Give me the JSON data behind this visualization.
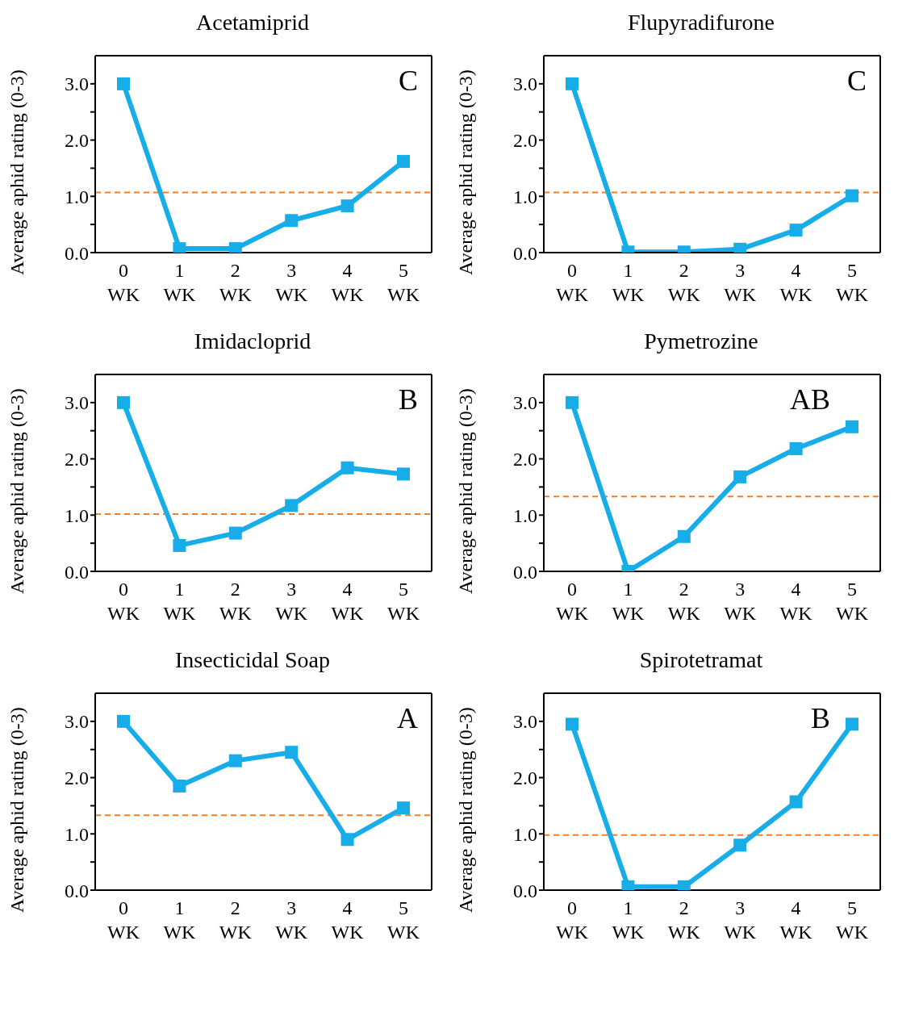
{
  "chart_data": [
    {
      "type": "line",
      "title": "Acetamiprid",
      "ylabel": "Average aphid rating (0-3)",
      "annotations": [
        "C"
      ],
      "categories": [
        "0 WK",
        "1 WK",
        "2 WK",
        "3 WK",
        "4 WK",
        "5 WK"
      ],
      "marker": "square",
      "line_style": "solid",
      "grid": false,
      "series": [
        {
          "color": "#16ade8",
          "values": [
            3.0,
            0.07,
            0.07,
            0.57,
            0.83,
            1.62
          ]
        }
      ],
      "ylim": [
        0,
        3.5
      ],
      "yticks": [
        {
          "value": 0,
          "label": "0.0"
        },
        {
          "value": 0.5,
          "label": null
        },
        {
          "value": 1,
          "label": "1.0"
        },
        {
          "value": 1.5,
          "label": null
        },
        {
          "value": 2,
          "label": "2.0"
        },
        {
          "value": 2.5,
          "label": null
        },
        {
          "value": 3,
          "label": "3.0"
        }
      ],
      "ref_lines": [
        {
          "axis": "y",
          "value": 1.07,
          "color": "#f07f2a",
          "line_style": "dashed"
        }
      ]
    },
    {
      "type": "line",
      "title": "Flupyradifurone",
      "ylabel": "Average aphid rating (0-3)",
      "annotations": [
        "C"
      ],
      "categories": [
        "0 WK",
        "1 WK",
        "2 WK",
        "3 WK",
        "4 WK",
        "5 WK"
      ],
      "marker": "square",
      "line_style": "solid",
      "grid": false,
      "series": [
        {
          "color": "#16ade8",
          "values": [
            3.0,
            0.01,
            0.01,
            0.06,
            0.4,
            1.01
          ]
        }
      ],
      "ylim": [
        0,
        3.5
      ],
      "yticks": [
        {
          "value": 0,
          "label": "0.0"
        },
        {
          "value": 0.5,
          "label": null
        },
        {
          "value": 1,
          "label": "1.0"
        },
        {
          "value": 1.5,
          "label": null
        },
        {
          "value": 2,
          "label": "2.0"
        },
        {
          "value": 2.5,
          "label": null
        },
        {
          "value": 3,
          "label": "3.0"
        }
      ],
      "ref_lines": [
        {
          "axis": "y",
          "value": 1.07,
          "color": "#f07f2a",
          "line_style": "dashed"
        }
      ]
    },
    {
      "type": "line",
      "title": "Imidacloprid",
      "ylabel": "Average aphid rating (0-3)",
      "annotations": [
        "B"
      ],
      "categories": [
        "0 WK",
        "1 WK",
        "2 WK",
        "3 WK",
        "4 WK",
        "5 WK"
      ],
      "marker": "square",
      "line_style": "solid",
      "grid": false,
      "series": [
        {
          "color": "#16ade8",
          "values": [
            3.0,
            0.46,
            0.68,
            1.17,
            1.84,
            1.73
          ]
        }
      ],
      "ylim": [
        0,
        3.5
      ],
      "yticks": [
        {
          "value": 0,
          "label": "0.0"
        },
        {
          "value": 0.5,
          "label": null
        },
        {
          "value": 1,
          "label": "1.0"
        },
        {
          "value": 1.5,
          "label": null
        },
        {
          "value": 2,
          "label": "2.0"
        },
        {
          "value": 2.5,
          "label": null
        },
        {
          "value": 3,
          "label": "3.0"
        }
      ],
      "ref_lines": [
        {
          "axis": "y",
          "value": 1.02,
          "color": "#f07f2a",
          "line_style": "dashed"
        }
      ]
    },
    {
      "type": "line",
      "title": "Pymetrozine",
      "ylabel": "Average aphid rating (0-3)",
      "annotations": [
        "AB"
      ],
      "categories": [
        "0 WK",
        "1 WK",
        "2 WK",
        "3 WK",
        "4 WK",
        "5 WK"
      ],
      "marker": "square",
      "line_style": "solid",
      "grid": false,
      "series": [
        {
          "color": "#16ade8",
          "values": [
            3.0,
            0.0,
            0.62,
            1.68,
            2.18,
            2.57
          ]
        }
      ],
      "ylim": [
        0,
        3.5
      ],
      "yticks": [
        {
          "value": 0,
          "label": "0.0"
        },
        {
          "value": 0.5,
          "label": null
        },
        {
          "value": 1,
          "label": "1.0"
        },
        {
          "value": 1.5,
          "label": null
        },
        {
          "value": 2,
          "label": "2.0"
        },
        {
          "value": 2.5,
          "label": null
        },
        {
          "value": 3,
          "label": "3.0"
        }
      ],
      "ref_lines": [
        {
          "axis": "y",
          "value": 1.33,
          "color": "#f07f2a",
          "line_style": "dashed"
        }
      ]
    },
    {
      "type": "line",
      "title": "Insecticidal Soap",
      "ylabel": "Average aphid rating (0-3)",
      "annotations": [
        "A"
      ],
      "categories": [
        "0 WK",
        "1 WK",
        "2 WK",
        "3 WK",
        "4 WK",
        "5 WK"
      ],
      "marker": "square",
      "line_style": "solid",
      "grid": false,
      "series": [
        {
          "color": "#16ade8",
          "values": [
            3.0,
            1.85,
            2.3,
            2.45,
            0.9,
            1.46
          ]
        }
      ],
      "ylim": [
        0,
        3.5
      ],
      "yticks": [
        {
          "value": 0,
          "label": "0.0"
        },
        {
          "value": 0.5,
          "label": null
        },
        {
          "value": 1,
          "label": "1.0"
        },
        {
          "value": 1.5,
          "label": null
        },
        {
          "value": 2,
          "label": "2.0"
        },
        {
          "value": 2.5,
          "label": null
        },
        {
          "value": 3,
          "label": "3.0"
        }
      ],
      "ref_lines": [
        {
          "axis": "y",
          "value": 1.33,
          "color": "#f07f2a",
          "line_style": "dashed"
        }
      ]
    },
    {
      "type": "line",
      "title": "Spirotetramat",
      "ylabel": "Average aphid rating (0-3)",
      "annotations": [
        "B"
      ],
      "categories": [
        "0 WK",
        "1 WK",
        "2 WK",
        "3 WK",
        "4 WK",
        "5 WK"
      ],
      "marker": "square",
      "line_style": "solid",
      "grid": false,
      "series": [
        {
          "color": "#16ade8",
          "values": [
            2.95,
            0.06,
            0.06,
            0.8,
            1.57,
            2.95
          ]
        }
      ],
      "ylim": [
        0,
        3.5
      ],
      "yticks": [
        {
          "value": 0,
          "label": "0.0"
        },
        {
          "value": 0.5,
          "label": null
        },
        {
          "value": 1,
          "label": "1.0"
        },
        {
          "value": 1.5,
          "label": null
        },
        {
          "value": 2,
          "label": "2.0"
        },
        {
          "value": 2.5,
          "label": null
        },
        {
          "value": 3,
          "label": "3.0"
        }
      ],
      "ref_lines": [
        {
          "axis": "y",
          "value": 0.98,
          "color": "#f07f2a",
          "line_style": "dashed"
        }
      ]
    }
  ]
}
